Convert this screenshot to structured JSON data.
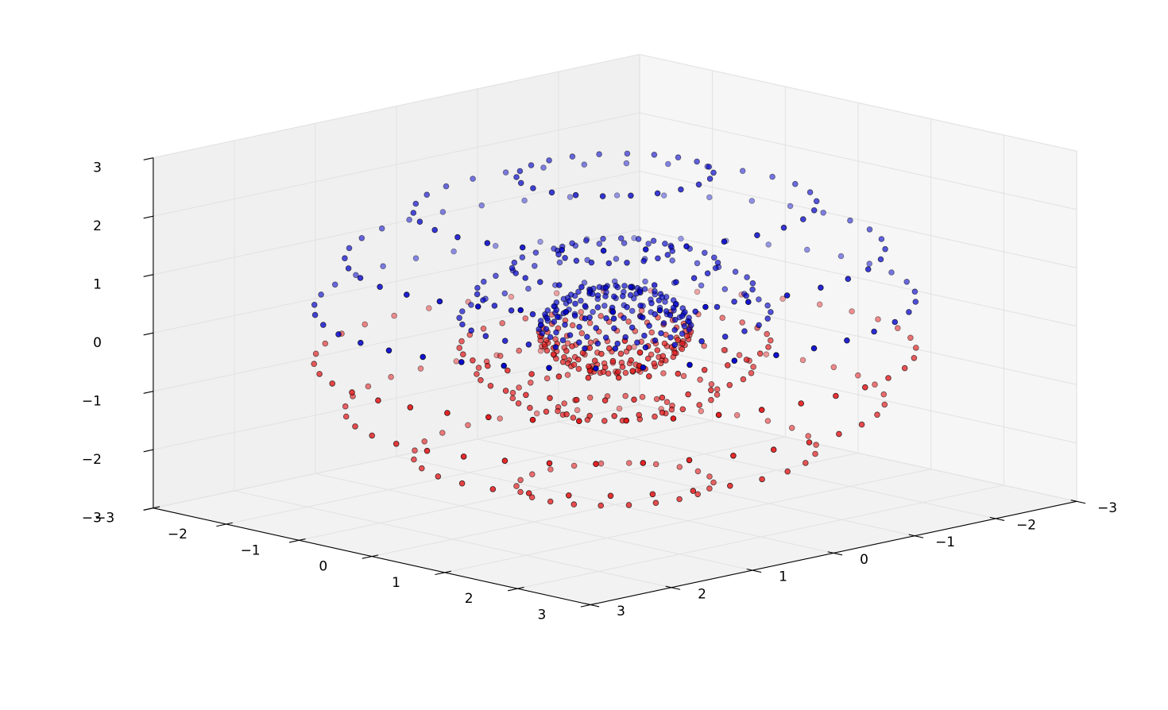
{
  "chart_data": {
    "type": "scatter",
    "projection": "3d",
    "title": "",
    "xlabel": "",
    "ylabel": "",
    "zlabel": "",
    "xlim": [
      -3,
      3
    ],
    "ylim": [
      -3,
      3
    ],
    "zlim": [
      -3,
      3
    ],
    "grid": true,
    "legend": "none",
    "x_ticks": [
      "−3",
      "−2",
      "−1",
      "0",
      "1",
      "2",
      "3"
    ],
    "y_ticks": [
      "−3",
      "−2",
      "−1",
      "0",
      "1",
      "2",
      "3"
    ],
    "z_ticks": [
      "−3",
      "−2",
      "−1",
      "0",
      "1",
      "2",
      "3"
    ],
    "shells": [
      {
        "radius": 2.8,
        "rings": [
          {
            "z": 2.65,
            "count": 22
          },
          {
            "z": 2.1,
            "count": 30
          },
          {
            "z": 1.3,
            "count": 36
          },
          {
            "z": 0.45,
            "count": 40
          },
          {
            "z": -0.45,
            "count": 40
          },
          {
            "z": -1.3,
            "count": 36
          },
          {
            "z": -2.1,
            "count": 30
          },
          {
            "z": -2.65,
            "count": 22
          }
        ]
      },
      {
        "radius": 1.45,
        "rings": [
          {
            "z": 1.35,
            "count": 20
          },
          {
            "z": 1.1,
            "count": 26
          },
          {
            "z": 0.7,
            "count": 30
          },
          {
            "z": 0.25,
            "count": 32
          },
          {
            "z": -0.25,
            "count": 32
          },
          {
            "z": -0.7,
            "count": 30
          },
          {
            "z": -1.1,
            "count": 26
          },
          {
            "z": -1.35,
            "count": 20
          }
        ]
      },
      {
        "radius": 0.7,
        "rings": [
          {
            "z": 0.66,
            "count": 18
          },
          {
            "z": 0.55,
            "count": 20
          },
          {
            "z": 0.42,
            "count": 22
          },
          {
            "z": 0.28,
            "count": 24
          },
          {
            "z": 0.14,
            "count": 24
          },
          {
            "z": 0.04,
            "count": 24
          },
          {
            "z": -0.04,
            "count": 24
          },
          {
            "z": -0.14,
            "count": 24
          },
          {
            "z": -0.28,
            "count": 24
          },
          {
            "z": -0.42,
            "count": 22
          },
          {
            "z": -0.55,
            "count": 20
          },
          {
            "z": -0.66,
            "count": 18
          }
        ]
      }
    ],
    "color_rule": "z > 0 blue, z < 0 red",
    "colors": {
      "positive_z": "#0000cc",
      "negative_z": "#e31a1c",
      "edge": "#000000"
    }
  }
}
